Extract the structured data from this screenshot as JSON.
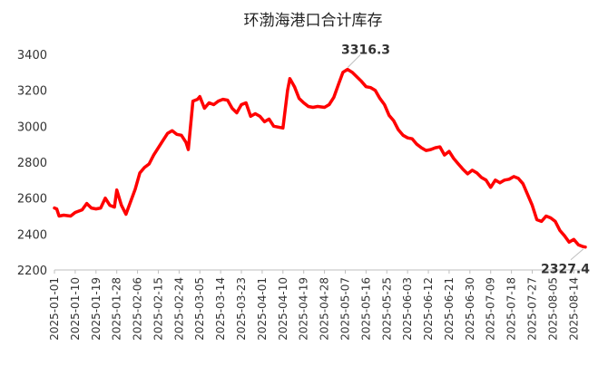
{
  "chart_data": {
    "type": "line",
    "title": "环渤海港口合计库存",
    "xlabel": "",
    "ylabel": "",
    "ylim": [
      2200,
      3400
    ],
    "yticks": [
      2200,
      2400,
      2600,
      2800,
      3000,
      3200,
      3400
    ],
    "grid": false,
    "legend": "none",
    "x_tick_labels": [
      "2025-01-01",
      "2025-01-10",
      "2025-01-19",
      "2025-01-28",
      "2025-02-06",
      "2025-02-15",
      "2025-02-24",
      "2025-03-05",
      "2025-03-14",
      "2025-03-23",
      "2025-04-01",
      "2025-04-10",
      "2025-04-19",
      "2025-04-28",
      "2025-05-07",
      "2025-05-16",
      "2025-05-25",
      "2025-06-03",
      "2025-06-12",
      "2025-06-21",
      "2025-06-30",
      "2025-07-09",
      "2025-07-18",
      "2025-07-27",
      "2025-08-05",
      "2025-08-14"
    ],
    "series": [
      {
        "color": "#ff0000",
        "points": [
          [
            "2025-01-01",
            2545
          ],
          [
            "2025-01-02",
            2540
          ],
          [
            "2025-01-03",
            2500
          ],
          [
            "2025-01-05",
            2505
          ],
          [
            "2025-01-08",
            2500
          ],
          [
            "2025-01-10",
            2520
          ],
          [
            "2025-01-13",
            2535
          ],
          [
            "2025-01-15",
            2570
          ],
          [
            "2025-01-17",
            2545
          ],
          [
            "2025-01-19",
            2540
          ],
          [
            "2025-01-21",
            2545
          ],
          [
            "2025-01-23",
            2600
          ],
          [
            "2025-01-25",
            2560
          ],
          [
            "2025-01-27",
            2550
          ],
          [
            "2025-01-28",
            2645
          ],
          [
            "2025-01-30",
            2560
          ],
          [
            "2025-02-01",
            2510
          ],
          [
            "2025-02-03",
            2580
          ],
          [
            "2025-02-05",
            2650
          ],
          [
            "2025-02-07",
            2740
          ],
          [
            "2025-02-09",
            2770
          ],
          [
            "2025-02-11",
            2790
          ],
          [
            "2025-02-13",
            2840
          ],
          [
            "2025-02-15",
            2880
          ],
          [
            "2025-02-17",
            2920
          ],
          [
            "2025-02-19",
            2960
          ],
          [
            "2025-02-21",
            2975
          ],
          [
            "2025-02-23",
            2955
          ],
          [
            "2025-02-25",
            2950
          ],
          [
            "2025-02-27",
            2910
          ],
          [
            "2025-02-28",
            2870
          ],
          [
            "2025-03-02",
            3140
          ],
          [
            "2025-03-04",
            3150
          ],
          [
            "2025-03-05",
            3165
          ],
          [
            "2025-03-07",
            3100
          ],
          [
            "2025-03-09",
            3130
          ],
          [
            "2025-03-11",
            3120
          ],
          [
            "2025-03-13",
            3140
          ],
          [
            "2025-03-15",
            3150
          ],
          [
            "2025-03-17",
            3145
          ],
          [
            "2025-03-19",
            3100
          ],
          [
            "2025-03-21",
            3075
          ],
          [
            "2025-03-23",
            3120
          ],
          [
            "2025-03-25",
            3130
          ],
          [
            "2025-03-27",
            3055
          ],
          [
            "2025-03-29",
            3070
          ],
          [
            "2025-03-31",
            3055
          ],
          [
            "2025-04-02",
            3025
          ],
          [
            "2025-04-04",
            3040
          ],
          [
            "2025-04-06",
            3000
          ],
          [
            "2025-04-08",
            2995
          ],
          [
            "2025-04-10",
            2990
          ],
          [
            "2025-04-12",
            3200
          ],
          [
            "2025-04-13",
            3265
          ],
          [
            "2025-04-15",
            3220
          ],
          [
            "2025-04-17",
            3155
          ],
          [
            "2025-04-19",
            3130
          ],
          [
            "2025-04-21",
            3110
          ],
          [
            "2025-04-23",
            3105
          ],
          [
            "2025-04-25",
            3110
          ],
          [
            "2025-04-28",
            3105
          ],
          [
            "2025-04-30",
            3120
          ],
          [
            "2025-05-02",
            3160
          ],
          [
            "2025-05-04",
            3230
          ],
          [
            "2025-05-06",
            3300
          ],
          [
            "2025-05-08",
            3316.3
          ],
          [
            "2025-05-10",
            3300
          ],
          [
            "2025-05-12",
            3275
          ],
          [
            "2025-05-14",
            3250
          ],
          [
            "2025-05-16",
            3220
          ],
          [
            "2025-05-18",
            3215
          ],
          [
            "2025-05-20",
            3200
          ],
          [
            "2025-05-22",
            3155
          ],
          [
            "2025-05-24",
            3120
          ],
          [
            "2025-05-26",
            3060
          ],
          [
            "2025-05-28",
            3030
          ],
          [
            "2025-05-30",
            2980
          ],
          [
            "2025-06-01",
            2950
          ],
          [
            "2025-06-03",
            2935
          ],
          [
            "2025-06-05",
            2930
          ],
          [
            "2025-06-07",
            2900
          ],
          [
            "2025-06-09",
            2880
          ],
          [
            "2025-06-11",
            2865
          ],
          [
            "2025-06-13",
            2870
          ],
          [
            "2025-06-15",
            2880
          ],
          [
            "2025-06-17",
            2885
          ],
          [
            "2025-06-19",
            2840
          ],
          [
            "2025-06-21",
            2860
          ],
          [
            "2025-06-23",
            2820
          ],
          [
            "2025-06-25",
            2790
          ],
          [
            "2025-06-27",
            2760
          ],
          [
            "2025-06-29",
            2735
          ],
          [
            "2025-07-01",
            2755
          ],
          [
            "2025-07-03",
            2740
          ],
          [
            "2025-07-05",
            2715
          ],
          [
            "2025-07-07",
            2700
          ],
          [
            "2025-07-09",
            2660
          ],
          [
            "2025-07-11",
            2700
          ],
          [
            "2025-07-13",
            2685
          ],
          [
            "2025-07-15",
            2700
          ],
          [
            "2025-07-17",
            2705
          ],
          [
            "2025-07-19",
            2720
          ],
          [
            "2025-07-21",
            2710
          ],
          [
            "2025-07-23",
            2680
          ],
          [
            "2025-07-25",
            2620
          ],
          [
            "2025-07-27",
            2560
          ],
          [
            "2025-07-29",
            2480
          ],
          [
            "2025-07-31",
            2470
          ],
          [
            "2025-08-02",
            2500
          ],
          [
            "2025-08-04",
            2490
          ],
          [
            "2025-08-06",
            2470
          ],
          [
            "2025-08-08",
            2420
          ],
          [
            "2025-08-10",
            2390
          ],
          [
            "2025-08-12",
            2355
          ],
          [
            "2025-08-14",
            2370
          ],
          [
            "2025-08-16",
            2340
          ],
          [
            "2025-08-18",
            2330
          ],
          [
            "2025-08-19",
            2327.4
          ]
        ]
      }
    ],
    "annotations": [
      {
        "text": "3316.3",
        "x": "2025-05-08",
        "y": 3316.3
      },
      {
        "text": "2327.4",
        "x": "2025-08-19",
        "y": 2327.4
      }
    ]
  }
}
